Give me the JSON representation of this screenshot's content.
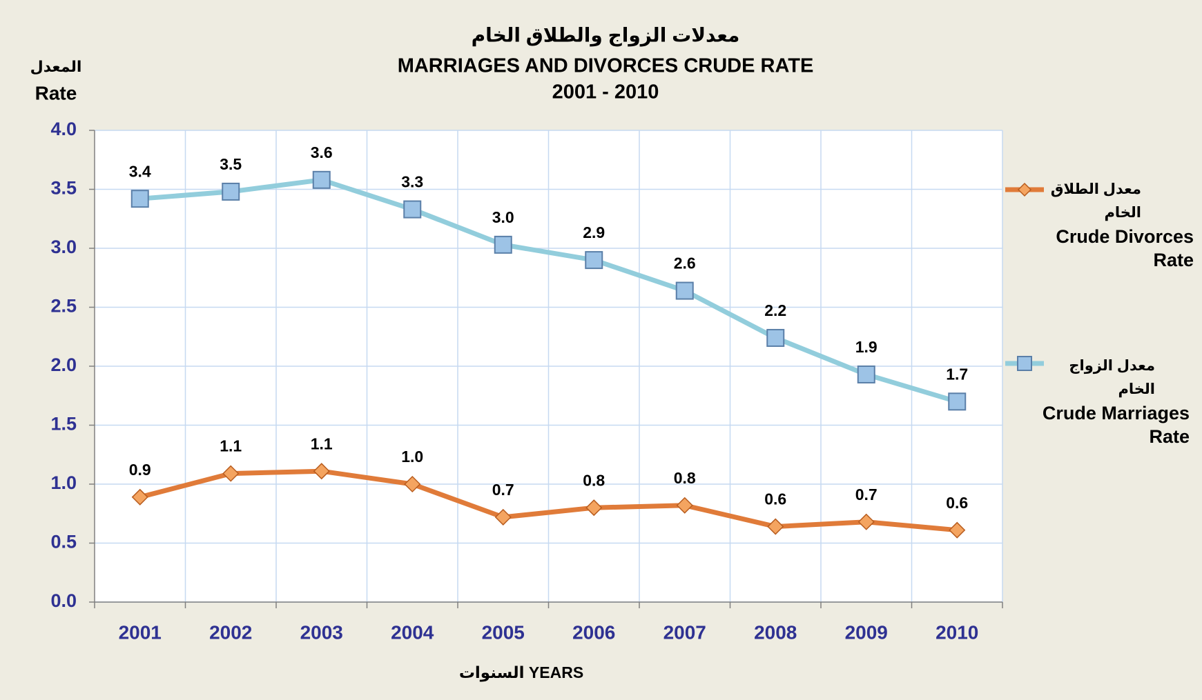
{
  "chart_data": {
    "type": "line",
    "title": "معدلات الزواج والطلاق الخام",
    "subtitle": "MARRIAGES AND DIVORCES CRUDE RATE",
    "period": "2001 - 2010",
    "y_label_ar": "المعدل",
    "y_label": "Rate",
    "x_label": "السنوات YEARS",
    "categories": [
      "2001",
      "2002",
      "2003",
      "2004",
      "2005",
      "2006",
      "2007",
      "2008",
      "2009",
      "2010"
    ],
    "series": [
      {
        "name": "Crude Divorces Rate",
        "name_ar": "معدل الطلاق الخام",
        "color": "#e07b39",
        "marker": "diamond",
        "values": [
          0.89,
          1.09,
          1.11,
          1.0,
          0.72,
          0.8,
          0.82,
          0.64,
          0.68,
          0.61
        ],
        "value_labels": [
          "0.9",
          "1.1",
          "1.1",
          "1.0",
          "0.7",
          "0.8",
          "0.8",
          "0.6",
          "0.7",
          "0.6"
        ]
      },
      {
        "name": "Crude Marriages Rate",
        "name_ar": "معدل الزواج الخام",
        "color": "#92cddc",
        "marker": "square",
        "values": [
          3.42,
          3.48,
          3.58,
          3.33,
          3.03,
          2.9,
          2.64,
          2.24,
          1.93,
          1.7
        ],
        "value_labels": [
          "3.4",
          "3.5",
          "3.6",
          "3.3",
          "3.0",
          "2.9",
          "2.6",
          "2.2",
          "1.9",
          "1.7"
        ]
      }
    ],
    "ylim": [
      0,
      4
    ],
    "yticks": [
      {
        "value": 0,
        "label": "0.0"
      },
      {
        "value": 0.5,
        "label": "0.5"
      },
      {
        "value": 1,
        "label": "1.0"
      },
      {
        "value": 1.5,
        "label": "1.5"
      },
      {
        "value": 2,
        "label": "2.0"
      },
      {
        "value": 2.5,
        "label": "2.5"
      },
      {
        "value": 3,
        "label": "3.0"
      },
      {
        "value": 3.5,
        "label": "3.5"
      },
      {
        "value": 4,
        "label": "4.0"
      }
    ],
    "grid": true,
    "legend": "right"
  }
}
